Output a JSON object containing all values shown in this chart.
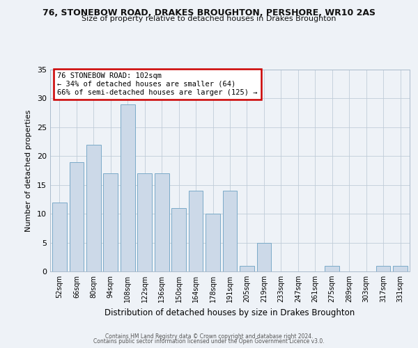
{
  "title": "76, STONEBOW ROAD, DRAKES BROUGHTON, PERSHORE, WR10 2AS",
  "subtitle": "Size of property relative to detached houses in Drakes Broughton",
  "xlabel": "Distribution of detached houses by size in Drakes Broughton",
  "ylabel": "Number of detached properties",
  "bar_labels": [
    "52sqm",
    "66sqm",
    "80sqm",
    "94sqm",
    "108sqm",
    "122sqm",
    "136sqm",
    "150sqm",
    "164sqm",
    "178sqm",
    "191sqm",
    "205sqm",
    "219sqm",
    "233sqm",
    "247sqm",
    "261sqm",
    "275sqm",
    "289sqm",
    "303sqm",
    "317sqm",
    "331sqm"
  ],
  "bar_values": [
    12,
    19,
    22,
    17,
    29,
    17,
    17,
    11,
    14,
    10,
    14,
    1,
    5,
    0,
    0,
    0,
    1,
    0,
    0,
    1,
    1
  ],
  "bar_color": "#ccd9e8",
  "bar_edgecolor": "#7aaac8",
  "ylim": [
    0,
    35
  ],
  "yticks": [
    0,
    5,
    10,
    15,
    20,
    25,
    30,
    35
  ],
  "annotation_line1": "76 STONEBOW ROAD: 102sqm",
  "annotation_line2": "← 34% of detached houses are smaller (64)",
  "annotation_line3": "66% of semi-detached houses are larger (125) →",
  "annotation_box_color": "#cc0000",
  "bg_color": "#eef2f7",
  "footer_line1": "Contains HM Land Registry data © Crown copyright and database right 2024.",
  "footer_line2": "Contains public sector information licensed under the Open Government Licence v3.0."
}
